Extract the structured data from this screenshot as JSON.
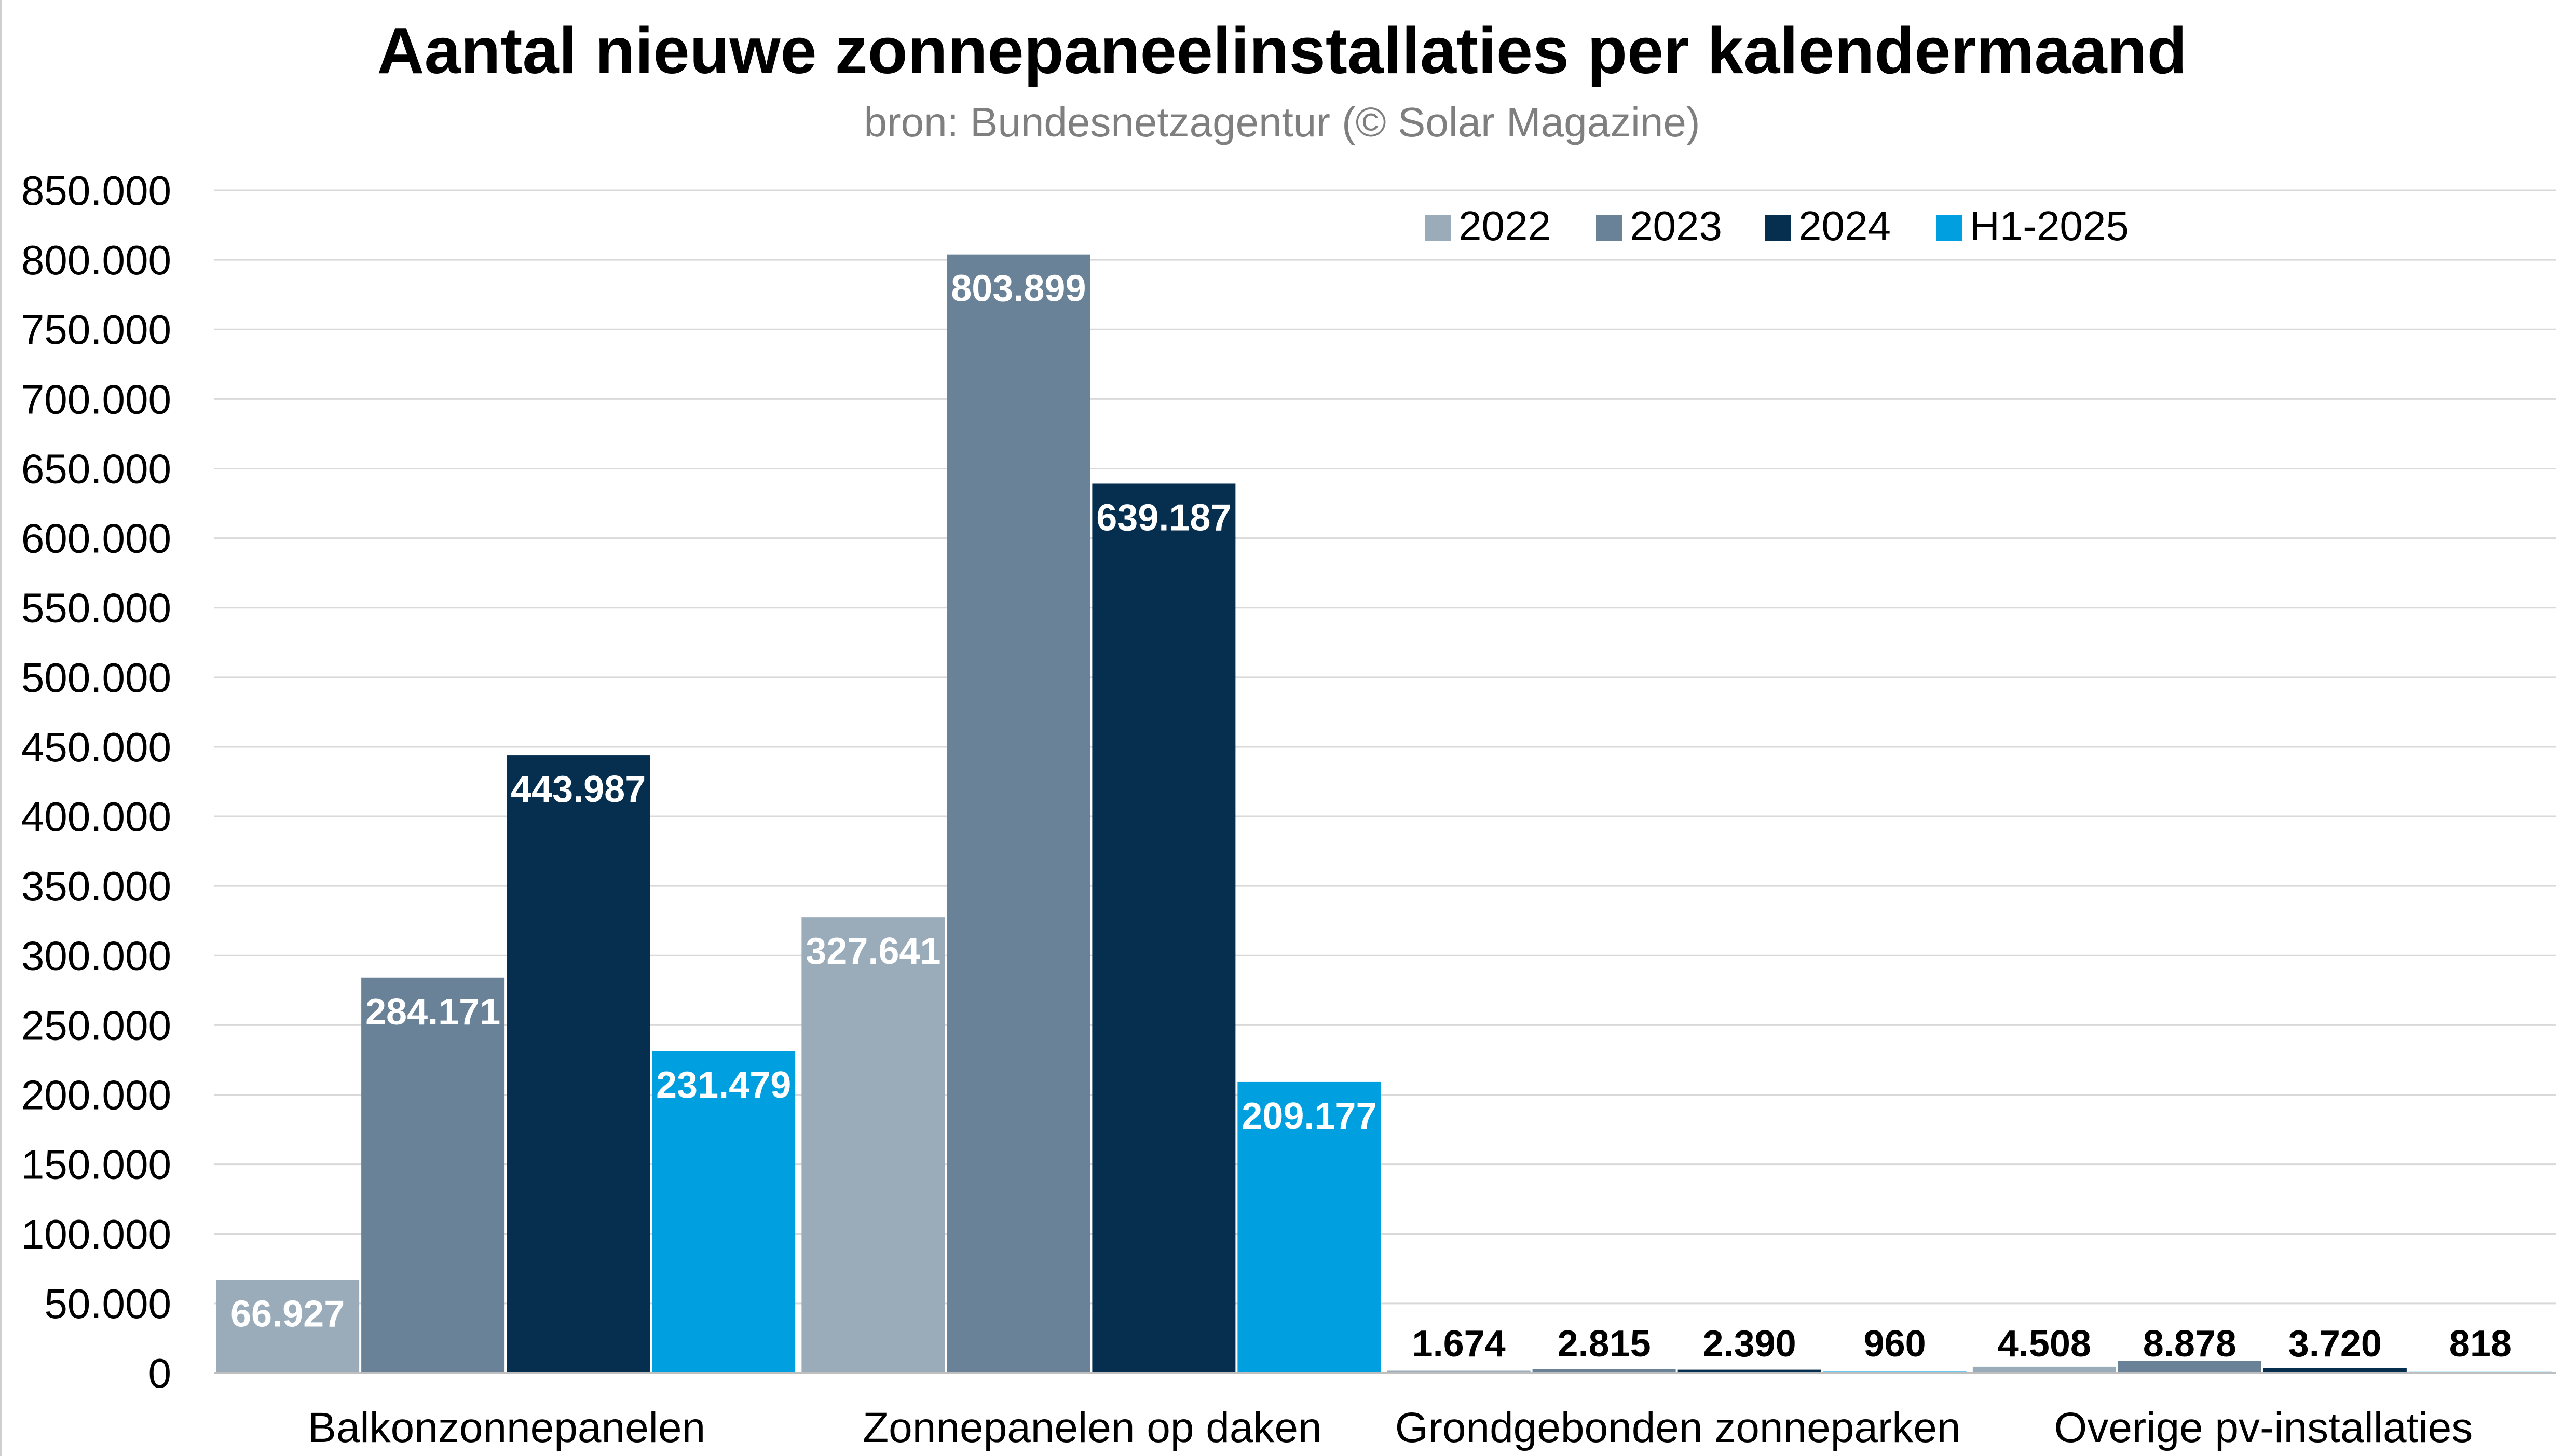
{
  "chart_data": {
    "type": "bar",
    "title": "Aantal nieuwe zonnepaneelinstallaties per kalendermaand",
    "subtitle": "bron: Bundesnetzagentur (© Solar Magazine)",
    "xlabel": "",
    "ylabel": "",
    "ylim": [
      0,
      850000
    ],
    "ytick_step": 50000,
    "yticks": [
      "0",
      "50.000",
      "100.000",
      "150.000",
      "200.000",
      "250.000",
      "300.000",
      "350.000",
      "400.000",
      "450.000",
      "500.000",
      "550.000",
      "600.000",
      "650.000",
      "700.000",
      "750.000",
      "800.000",
      "850.000"
    ],
    "grid": true,
    "legend_position": "top-right",
    "categories": [
      "Balkonzonnepanelen",
      "Zonnepanelen op daken",
      "Grondgebonden zonneparken",
      "Overige pv-installaties"
    ],
    "series": [
      {
        "name": "2022",
        "color": "#9aabb9",
        "values": [
          66927,
          327641,
          1674,
          4508
        ],
        "labels": [
          "66.927",
          "327.641",
          "1.674",
          "4.508"
        ]
      },
      {
        "name": "2023",
        "color": "#6a8298",
        "values": [
          284171,
          803899,
          2815,
          8878
        ],
        "labels": [
          "284.171",
          "803.899",
          "2.815",
          "8.878"
        ]
      },
      {
        "name": "2024",
        "color": "#052e4f",
        "values": [
          443987,
          639187,
          2390,
          3720
        ],
        "labels": [
          "443.987",
          "639.187",
          "2.390",
          "3.720"
        ]
      },
      {
        "name": "H1-2025",
        "color": "#009fe0",
        "values": [
          231479,
          209177,
          960,
          818
        ],
        "labels": [
          "231.479",
          "209.177",
          "960",
          "818"
        ]
      }
    ]
  }
}
